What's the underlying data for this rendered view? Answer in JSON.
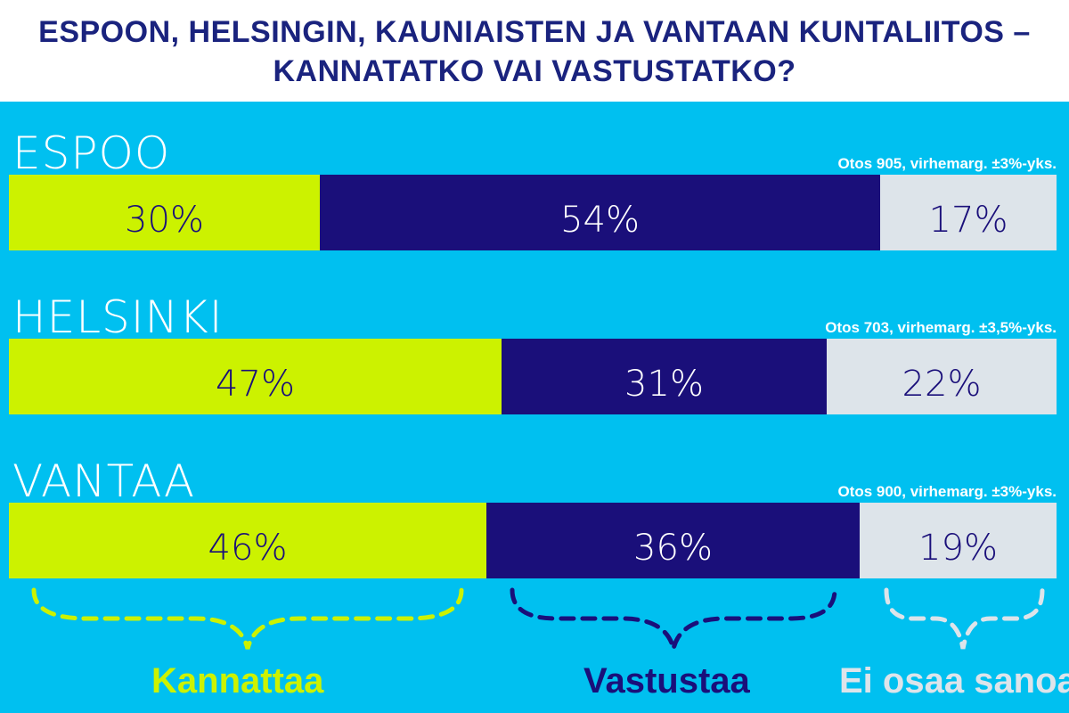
{
  "title": {
    "line1": "ESPOON, HELSINGIN, KAUNIAISTEN JA VANTAAN KUNTALIITOS –",
    "line2": "KANNATATKO VAI VASTUSTATKO?"
  },
  "colors": {
    "background": "#00c0f0",
    "title_text": "#1a237e",
    "kannattaa": "#ccf200",
    "vastustaa": "#1a0f7a",
    "ei_osaa": "#dde4ea"
  },
  "chart_data": {
    "type": "bar",
    "orientation": "horizontal-stacked-100",
    "categories": [
      "ESPOO",
      "HELSINKI",
      "VANTAA"
    ],
    "notes": [
      "Otos 905, virhemarg. ±3%-yks.",
      "Otos 703, virhemarg. ±3,5%-yks.",
      "Otos 900, virhemarg. ±3%-yks."
    ],
    "series": [
      {
        "name": "Kannattaa",
        "values": [
          30,
          47,
          46
        ],
        "labels": [
          "30%",
          "47%",
          "46%"
        ]
      },
      {
        "name": "Vastustaa",
        "values": [
          54,
          31,
          36
        ],
        "labels": [
          "54%",
          "31%",
          "36%"
        ]
      },
      {
        "name": "Ei osaa sanoa",
        "values": [
          17,
          22,
          19
        ],
        "labels": [
          "17%",
          "22%",
          "19%"
        ]
      }
    ]
  }
}
